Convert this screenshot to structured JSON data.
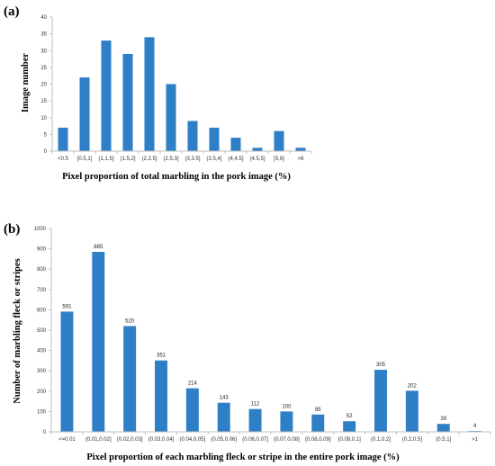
{
  "chart_data": [
    {
      "panel": "(a)",
      "type": "bar",
      "categories": [
        "<0.5",
        "[0.5,1]",
        "(1,1.5]",
        "(1.5,2]",
        "(2,2.5]",
        "(2.5,3]",
        "(3,3.5]",
        "(3.5,4]",
        "(4,4.5]",
        "(4.5,5]",
        "[5,6]",
        ">6"
      ],
      "values": [
        7,
        22,
        33,
        29,
        34,
        20,
        9,
        7,
        4,
        1,
        6,
        1
      ],
      "xlabel": "Pixel proportion of total marbling in the pork image (%)",
      "ylabel": "Image number",
      "ylim": [
        0,
        40
      ],
      "yticks": [
        0,
        5,
        10,
        15,
        20,
        25,
        30,
        35,
        40
      ],
      "grid": false,
      "bar_color": "#2e7fc6"
    },
    {
      "panel": "(b)",
      "type": "bar",
      "categories": [
        "<=0.01",
        "(0.01,0.02]",
        "(0.02,0.03]",
        "(0.03,0.04]",
        "(0.04,0.05]",
        "(0.05,0.06]",
        "(0.06,0.07]",
        "(0.07,0.08]",
        "(0.08,0.09]",
        "(0.09,0.1]",
        "(0.1,0.2]",
        "(0.2,0.5]",
        "(0.5,1]",
        ">1"
      ],
      "values": [
        591,
        885,
        520,
        351,
        214,
        143,
        112,
        100,
        85,
        52,
        305,
        202,
        39,
        4
      ],
      "xlabel": "Pixel proportion of each marbling fleck or stripe in the entire pork image (%)",
      "ylabel": "Number of marbling fleck or stripes",
      "ylim": [
        0,
        1000
      ],
      "yticks": [
        0,
        100,
        200,
        300,
        400,
        500,
        600,
        700,
        800,
        900,
        1000
      ],
      "grid": false,
      "data_labels": true,
      "bar_color": "#2e7fc6"
    }
  ]
}
